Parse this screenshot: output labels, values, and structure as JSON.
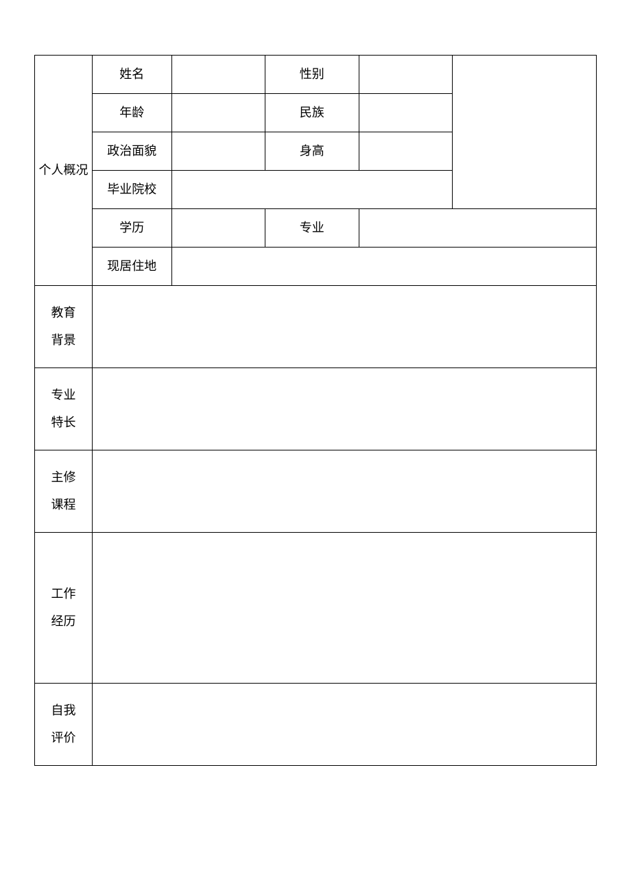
{
  "resume_table": {
    "type": "table",
    "background_color": "#ffffff",
    "border_color": "#000000",
    "text_color": "#000000",
    "font_size": 18,
    "font_family": "SimSun",
    "personal_overview": {
      "header": "个人概况",
      "name": {
        "label": "姓名",
        "value": ""
      },
      "gender": {
        "label": "性别",
        "value": ""
      },
      "age": {
        "label": "年龄",
        "value": ""
      },
      "ethnicity": {
        "label": "民族",
        "value": ""
      },
      "political_status": {
        "label": "政治面貌",
        "value": ""
      },
      "height": {
        "label": "身高",
        "value": ""
      },
      "graduation_school": {
        "label": "毕业院校",
        "value": ""
      },
      "education_level": {
        "label": "学历",
        "value": ""
      },
      "major": {
        "label": "专业",
        "value": ""
      },
      "residence": {
        "label": "现居住地",
        "value": ""
      }
    },
    "sections": {
      "education_background": {
        "label_line1": "教育",
        "label_line2": "背景",
        "value": ""
      },
      "professional_specialty": {
        "label_line1": "专业",
        "label_line2": "特长",
        "value": ""
      },
      "major_courses": {
        "label_line1": "主修",
        "label_line2": "课程",
        "value": ""
      },
      "work_experience": {
        "label_line1": "工作",
        "label_line2": "经历",
        "value": ""
      },
      "self_evaluation": {
        "label_line1": "自我",
        "label_line2": "评价",
        "value": ""
      }
    }
  }
}
